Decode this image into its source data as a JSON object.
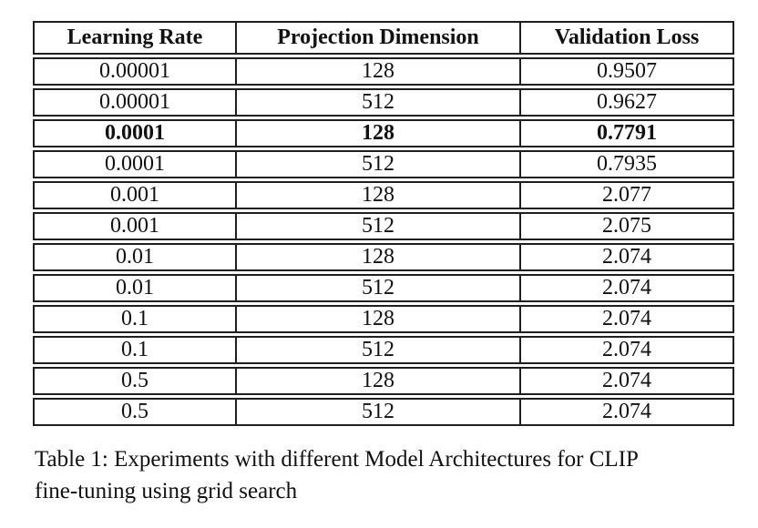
{
  "table": {
    "headers": [
      "Learning Rate",
      "Projection Dimension",
      "Validation Loss"
    ],
    "rows": [
      {
        "cells": [
          "0.00001",
          "128",
          "0.9507"
        ],
        "bold": false
      },
      {
        "cells": [
          "0.00001",
          "512",
          "0.9627"
        ],
        "bold": false
      },
      {
        "cells": [
          "0.0001",
          "128",
          "0.7791"
        ],
        "bold": true
      },
      {
        "cells": [
          "0.0001",
          "512",
          "0.7935"
        ],
        "bold": false
      },
      {
        "cells": [
          "0.001",
          "128",
          "2.077"
        ],
        "bold": false
      },
      {
        "cells": [
          "0.001",
          "512",
          "2.075"
        ],
        "bold": false
      },
      {
        "cells": [
          "0.01",
          "128",
          "2.074"
        ],
        "bold": false
      },
      {
        "cells": [
          "0.01",
          "512",
          "2.074"
        ],
        "bold": false
      },
      {
        "cells": [
          "0.1",
          "128",
          "2.074"
        ],
        "bold": false
      },
      {
        "cells": [
          "0.1",
          "512",
          "2.074"
        ],
        "bold": false
      },
      {
        "cells": [
          "0.5",
          "128",
          "2.074"
        ],
        "bold": false
      },
      {
        "cells": [
          "0.5",
          "512",
          "2.074"
        ],
        "bold": false
      }
    ]
  },
  "caption": "Table 1: Experiments with different Model Architectures for CLIP fine-tuning using grid search",
  "colors": {
    "border": "#1f1f1f",
    "text": "#111111",
    "background": "#ffffff"
  },
  "chart_data": {
    "type": "table",
    "title": "Table 1: Experiments with different Model Architectures for CLIP fine-tuning using grid search",
    "columns": [
      "Learning Rate",
      "Projection Dimension",
      "Validation Loss"
    ],
    "rows": [
      [
        1e-05,
        128,
        0.9507
      ],
      [
        1e-05,
        512,
        0.9627
      ],
      [
        0.0001,
        128,
        0.7791
      ],
      [
        0.0001,
        512,
        0.7935
      ],
      [
        0.001,
        128,
        2.077
      ],
      [
        0.001,
        512,
        2.075
      ],
      [
        0.01,
        128,
        2.074
      ],
      [
        0.01,
        512,
        2.074
      ],
      [
        0.1,
        128,
        2.074
      ],
      [
        0.1,
        512,
        2.074
      ],
      [
        0.5,
        128,
        2.074
      ],
      [
        0.5,
        512,
        2.074
      ]
    ],
    "highlighted_row_index": 2
  }
}
